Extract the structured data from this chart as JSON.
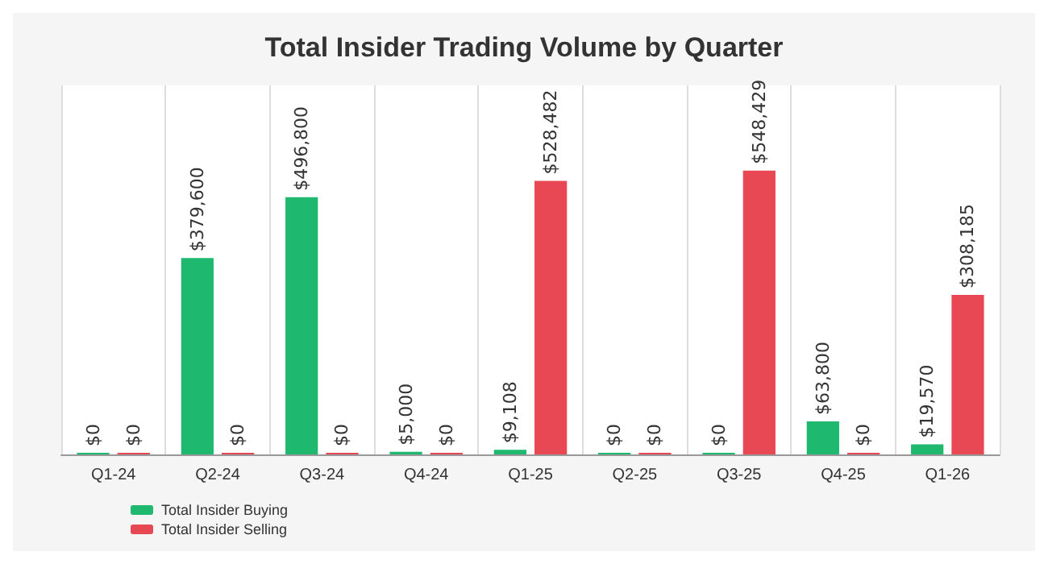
{
  "chart_data": {
    "type": "bar",
    "title": "Total Insider Trading Volume by Quarter",
    "categories": [
      "Q1-24",
      "Q2-24",
      "Q3-24",
      "Q4-24",
      "Q1-25",
      "Q2-25",
      "Q3-25",
      "Q4-25",
      "Q1-26"
    ],
    "series": [
      {
        "name": "Total Insider Buying",
        "color": "#1eb86f",
        "values": [
          0,
          379600,
          496800,
          5000,
          9108,
          0,
          0,
          63800,
          19570
        ],
        "value_labels": [
          "$0",
          "$379,600",
          "$496,800",
          "$5,000",
          "$9,108",
          "$0",
          "$0",
          "$63,800",
          "$19,570"
        ]
      },
      {
        "name": "Total Insider Selling",
        "color": "#e84853",
        "values": [
          0,
          0,
          0,
          0,
          528482,
          0,
          548429,
          0,
          308185
        ],
        "value_labels": [
          "$0",
          "$0",
          "$0",
          "$0",
          "$528,482",
          "$0",
          "$548,429",
          "$0",
          "$308,185"
        ]
      }
    ],
    "grid": "x",
    "legend": "bottom left",
    "tick_labels": "x"
  }
}
